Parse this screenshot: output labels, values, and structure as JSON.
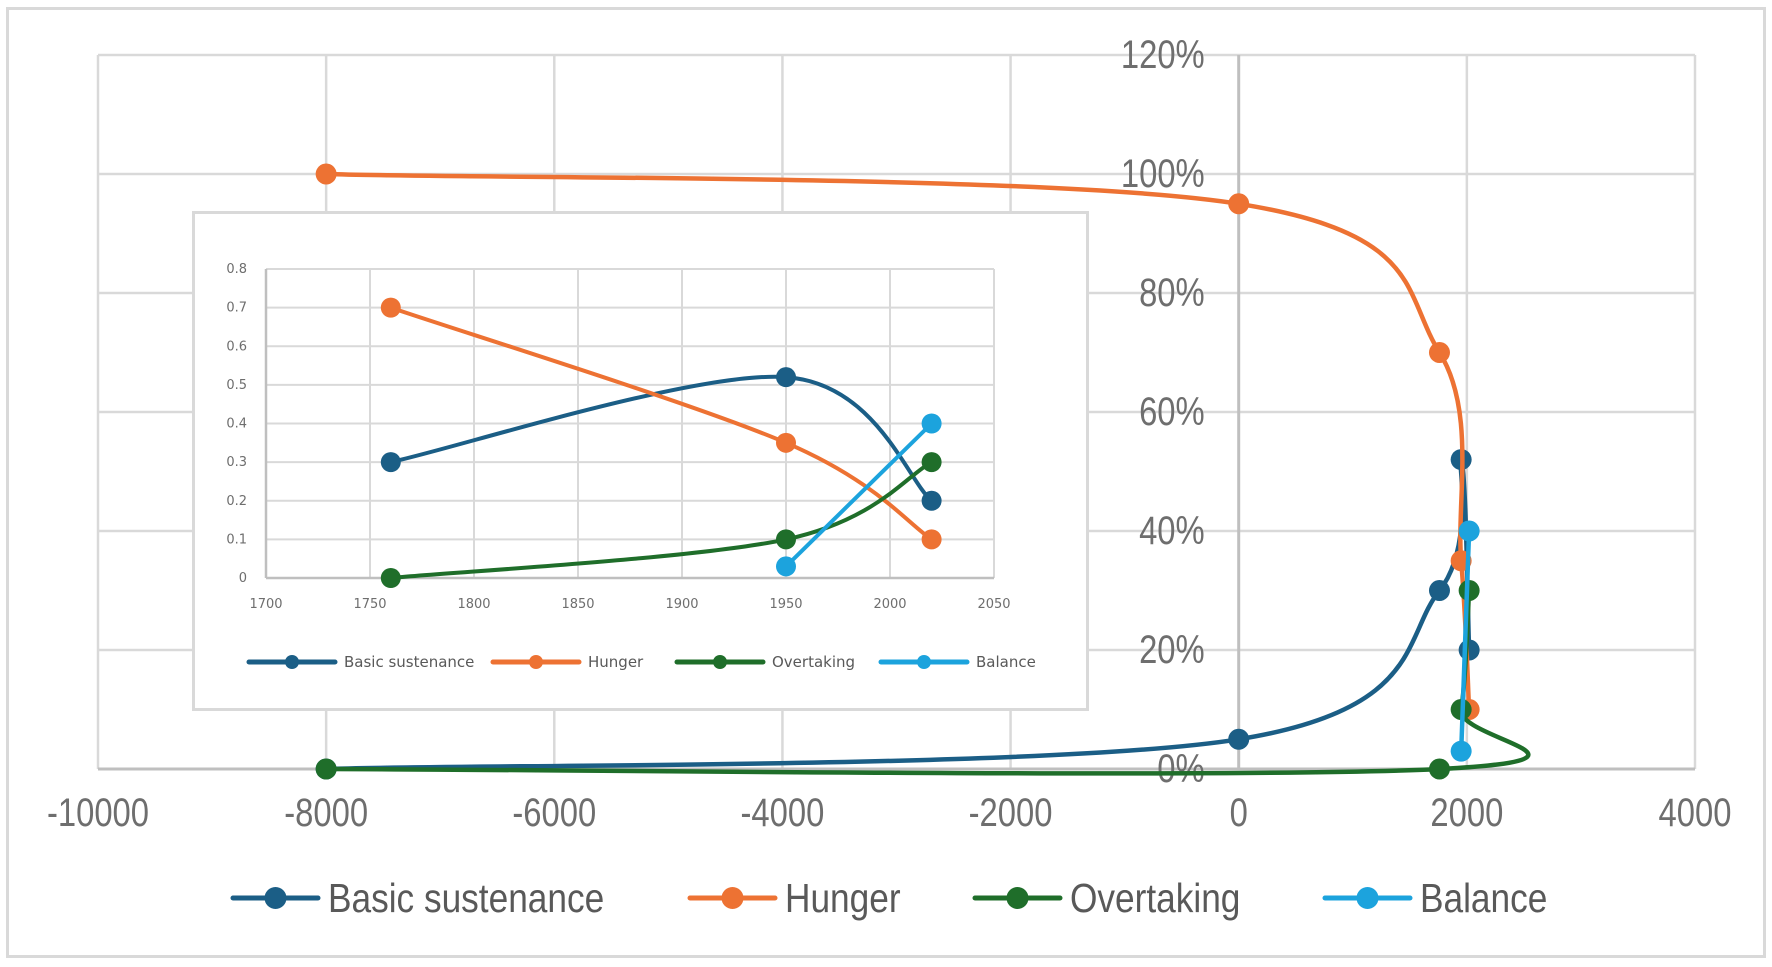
{
  "chart_data": [
    {
      "type": "scatter",
      "subtype": "scatter-smooth-lines-markers",
      "title": "",
      "xlabel": "",
      "ylabel": "",
      "xlim": [
        -10000,
        4000
      ],
      "ylim": [
        0,
        1.2
      ],
      "grid": true,
      "legend_position": "bottom",
      "x_ticks": [
        "-10000",
        "-8000",
        "-6000",
        "-4000",
        "-2000",
        "0",
        "2000",
        "4000"
      ],
      "x_tick_values": [
        -10000,
        -8000,
        -6000,
        -4000,
        -2000,
        0,
        2000,
        4000
      ],
      "y_ticks": [
        "0%",
        "20%",
        "40%",
        "60%",
        "80%",
        "100%",
        "120%"
      ],
      "y_tick_values": [
        0,
        0.2,
        0.4,
        0.6,
        0.8,
        1.0,
        1.2
      ],
      "series": [
        {
          "name": "Basic sustenance",
          "color": "#1b5e86",
          "x": [
            -8000,
            0,
            1760,
            1950,
            2020
          ],
          "y": [
            0,
            0.05,
            0.3,
            0.52,
            0.2
          ]
        },
        {
          "name": "Hunger",
          "color": "#ed7233",
          "x": [
            -8000,
            0,
            1760,
            1950,
            2020
          ],
          "y": [
            1.0,
            0.95,
            0.7,
            0.35,
            0.1
          ]
        },
        {
          "name": "Overtaking",
          "color": "#1f6e2a",
          "x": [
            -8000,
            1760,
            1950,
            2020
          ],
          "y": [
            0,
            0,
            0.1,
            0.3
          ]
        },
        {
          "name": "Balance",
          "color": "#1ca3dd",
          "x": [
            1950,
            2020
          ],
          "y": [
            0.03,
            0.4
          ]
        }
      ]
    },
    {
      "type": "scatter",
      "subtype": "scatter-smooth-lines-markers",
      "title": "",
      "xlabel": "",
      "ylabel": "",
      "xlim": [
        1700,
        2050
      ],
      "ylim": [
        0,
        0.8
      ],
      "grid": true,
      "legend_position": "bottom",
      "x_ticks": [
        "1700",
        "1750",
        "1800",
        "1850",
        "1900",
        "1950",
        "2000",
        "2050"
      ],
      "x_tick_values": [
        1700,
        1750,
        1800,
        1850,
        1900,
        1950,
        2000,
        2050
      ],
      "y_ticks": [
        "0",
        "0.1",
        "0.2",
        "0.3",
        "0.4",
        "0.5",
        "0.6",
        "0.7",
        "0.8"
      ],
      "y_tick_values": [
        0,
        0.1,
        0.2,
        0.3,
        0.4,
        0.5,
        0.6,
        0.7,
        0.8
      ],
      "series": [
        {
          "name": "Basic sustenance",
          "color": "#1b5e86",
          "x": [
            1760,
            1950,
            2020
          ],
          "y": [
            0.3,
            0.52,
            0.2
          ]
        },
        {
          "name": "Hunger",
          "color": "#ed7233",
          "x": [
            1760,
            1950,
            2020
          ],
          "y": [
            0.7,
            0.35,
            0.1
          ]
        },
        {
          "name": "Overtaking",
          "color": "#1f6e2a",
          "x": [
            1760,
            1950,
            2020
          ],
          "y": [
            0,
            0.1,
            0.3
          ]
        },
        {
          "name": "Balance",
          "color": "#1ca3dd",
          "x": [
            1950,
            2020
          ],
          "y": [
            0.03,
            0.4
          ]
        }
      ]
    }
  ]
}
